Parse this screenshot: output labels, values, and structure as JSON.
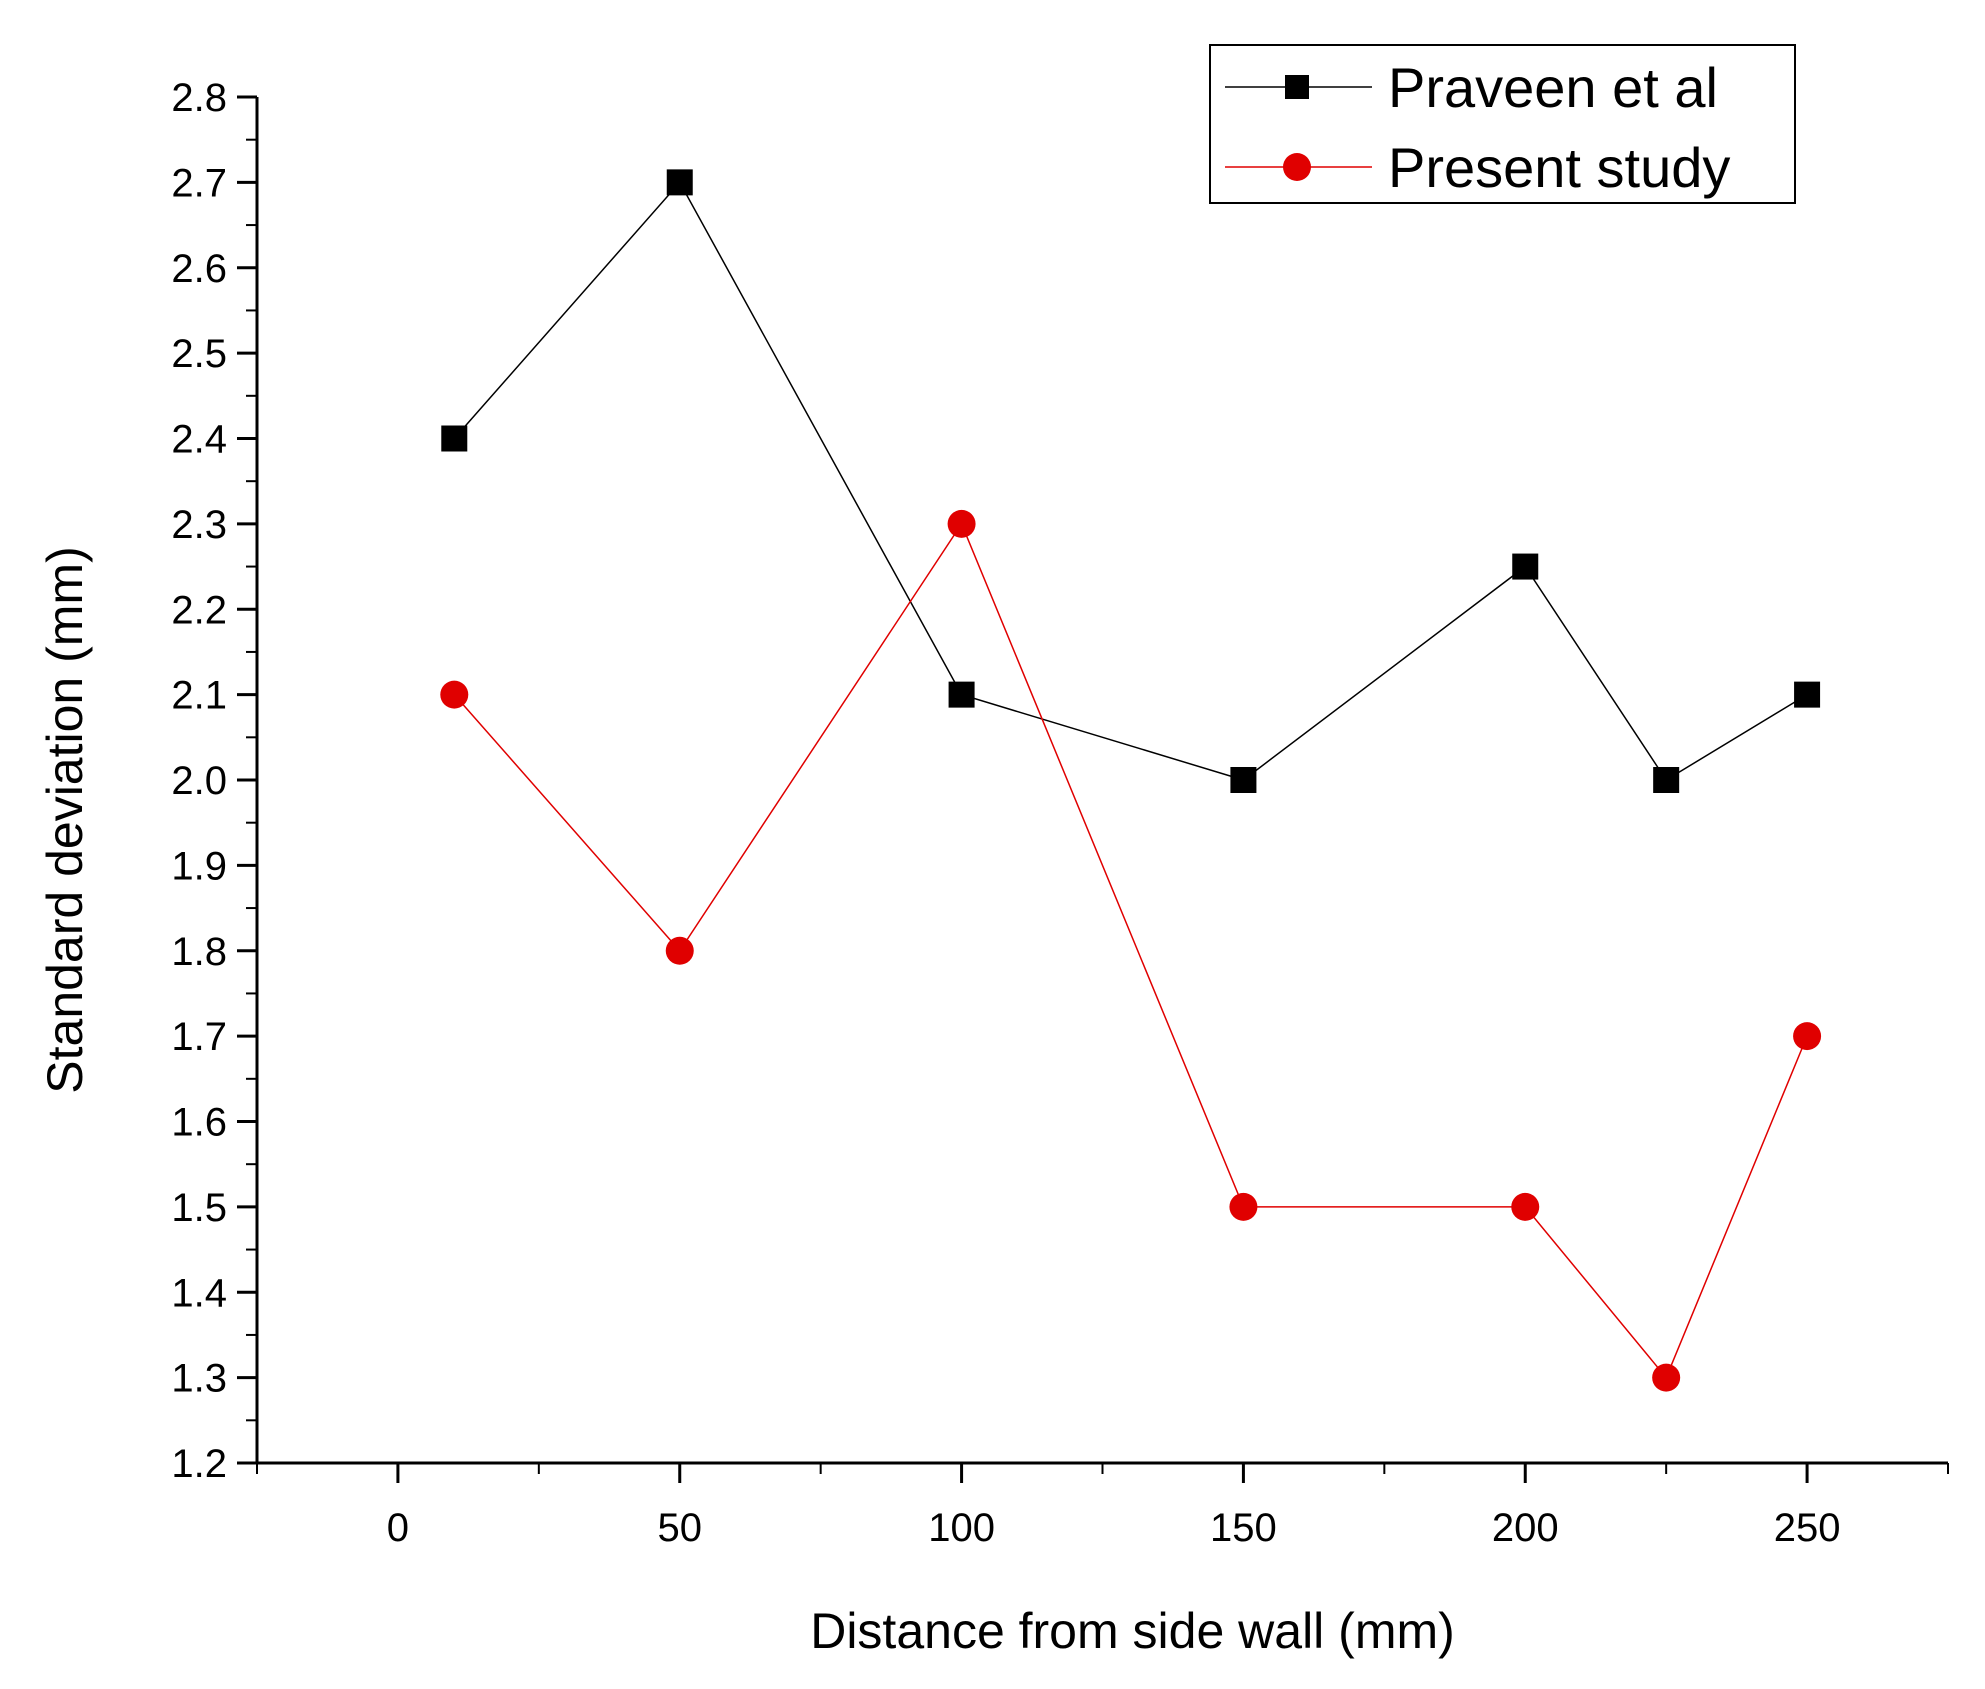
{
  "chart_data": {
    "type": "line",
    "title": "",
    "xlabel": "Distance from side wall (mm)",
    "ylabel": "Standard deviation (mm)",
    "xlim": [
      -25,
      275
    ],
    "ylim": [
      1.2,
      2.8
    ],
    "grid": false,
    "legend_position": "top-right",
    "x_ticks": [
      0,
      50,
      100,
      150,
      200,
      250
    ],
    "x_tick_labels": [
      "0",
      "50",
      "100",
      "150",
      "200",
      "250"
    ],
    "y_ticks": [
      1.2,
      1.3,
      1.4,
      1.5,
      1.6,
      1.7,
      1.8,
      1.9,
      2.0,
      2.1,
      2.2,
      2.3,
      2.4,
      2.5,
      2.6,
      2.7,
      2.8
    ],
    "y_tick_labels": [
      "1.2",
      "1.3",
      "1.4",
      "1.5",
      "1.6",
      "1.7",
      "1.8",
      "1.9",
      "2.0",
      "2.1",
      "2.2",
      "2.3",
      "2.4",
      "2.5",
      "2.6",
      "2.7",
      "2.8"
    ],
    "x": [
      10,
      50,
      100,
      150,
      200,
      225,
      250
    ],
    "series": [
      {
        "name": "Praveen et al",
        "marker": "square",
        "color": "#000000",
        "values": [
          2.4,
          2.7,
          2.1,
          2.0,
          2.25,
          2.0,
          2.1
        ]
      },
      {
        "name": "Present study",
        "marker": "circle",
        "color": "#e00000",
        "values": [
          2.1,
          1.8,
          2.3,
          1.5,
          1.5,
          1.3,
          1.7
        ]
      }
    ]
  }
}
